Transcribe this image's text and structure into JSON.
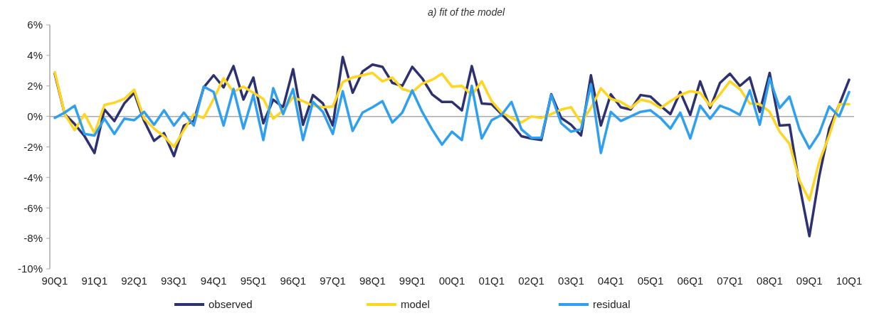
{
  "chart_data": {
    "type": "line",
    "title": "a) fit of the model",
    "categories": [
      "90Q1",
      null,
      null,
      null,
      "91Q1",
      null,
      null,
      null,
      "92Q1",
      null,
      null,
      null,
      "93Q1",
      null,
      null,
      null,
      "94Q1",
      null,
      null,
      null,
      "95Q1",
      null,
      null,
      null,
      "96Q1",
      null,
      null,
      null,
      "97Q1",
      null,
      null,
      null,
      "98Q1",
      null,
      null,
      null,
      "99Q1",
      null,
      null,
      null,
      "00Q1",
      null,
      null,
      null,
      "01Q1",
      null,
      null,
      null,
      "02Q1",
      null,
      null,
      null,
      "03Q1",
      null,
      null,
      null,
      "04Q1",
      null,
      null,
      null,
      "05Q1",
      null,
      null,
      null,
      "06Q1",
      null,
      null,
      null,
      "07Q1",
      null,
      null,
      null,
      "08Q1",
      null,
      null,
      null,
      "09Q1",
      null,
      null,
      null,
      "10Q1"
    ],
    "series": [
      {
        "name": "observed",
        "color": "#2e3170",
        "values": [
          2.8,
          0.15,
          -0.5,
          -1.3,
          -2.4,
          0.45,
          -0.3,
          0.85,
          1.55,
          -0.3,
          -1.6,
          -1.1,
          -2.6,
          -0.6,
          -0.3,
          1.9,
          2.7,
          1.9,
          3.3,
          1.1,
          2.55,
          -0.45,
          1.1,
          0.6,
          3.1,
          -0.55,
          1.4,
          0.85,
          -0.6,
          3.9,
          1.55,
          2.95,
          3.4,
          3.25,
          2.2,
          2.0,
          3.25,
          2.5,
          1.45,
          0.95,
          0.95,
          0.4,
          3.3,
          0.85,
          0.8,
          0.15,
          -0.5,
          -1.3,
          -1.45,
          -1.55,
          1.45,
          -0.1,
          -0.55,
          -1.25,
          2.7,
          -0.6,
          1.45,
          0.6,
          0.45,
          1.4,
          1.3,
          0.7,
          0.15,
          1.6,
          0.1,
          2.3,
          0.55,
          2.2,
          2.8,
          2.0,
          2.55,
          0.3,
          2.85,
          -0.6,
          -0.55,
          -4.5,
          -7.85,
          -3.9,
          -0.8,
          0.75,
          2.4
        ]
      },
      {
        "name": "model",
        "color": "#ffd520",
        "values": [
          2.9,
          0.15,
          -0.9,
          0.15,
          -1.1,
          0.75,
          0.9,
          1.15,
          1.75,
          -0.15,
          -0.8,
          -1.3,
          -2.0,
          -0.9,
          0.15,
          -0.1,
          1.15,
          2.5,
          1.6,
          1.95,
          1.55,
          1.15,
          -0.15,
          0.4,
          1.25,
          1.0,
          0.7,
          0.6,
          0.65,
          2.25,
          2.55,
          2.7,
          2.85,
          2.3,
          2.55,
          1.8,
          1.6,
          2.15,
          2.4,
          2.8,
          1.95,
          2.0,
          1.4,
          2.3,
          1.0,
          0.25,
          -0.1,
          -0.4,
          0,
          -0.1,
          0.15,
          0.45,
          0.6,
          -0.4,
          0.55,
          1.85,
          1.15,
          0.95,
          0.55,
          1.1,
          0.95,
          0.55,
          1.0,
          1.4,
          1.65,
          1.55,
          0.7,
          1.45,
          2.3,
          1.8,
          0.85,
          0.8,
          0.3,
          -1.0,
          -1.8,
          -4.2,
          -5.5,
          -2.95,
          -1.25,
          0.8,
          0.8
        ]
      },
      {
        "name": "residual",
        "color": "#2f9ff0",
        "values": [
          -0.1,
          0.25,
          0.7,
          -1.15,
          -1.25,
          -0.15,
          -1.15,
          -0.15,
          -0.25,
          0.3,
          -0.55,
          0.4,
          -0.6,
          0.25,
          -0.6,
          1.95,
          1.6,
          -0.6,
          1.8,
          -0.8,
          1.4,
          -1.55,
          1.85,
          0.15,
          1.8,
          -1.55,
          0.95,
          0.3,
          -1.15,
          1.65,
          -0.95,
          0.25,
          0.6,
          1.0,
          -0.4,
          0.25,
          1.7,
          0.3,
          -0.85,
          -1.85,
          -1.0,
          -1.55,
          2.0,
          -1.45,
          -0.25,
          0.1,
          0.95,
          -0.85,
          -1.4,
          -1.4,
          1.4,
          -0.45,
          -1.0,
          -0.85,
          2.1,
          -2.4,
          0.3,
          -0.3,
          0,
          0.3,
          0.4,
          -0.1,
          -0.8,
          0.25,
          -1.45,
          0.7,
          -0.15,
          0.7,
          0.45,
          0.1,
          1.7,
          -0.55,
          2.5,
          0.55,
          1.3,
          -0.85,
          -2.1,
          -1.1,
          0.65,
          0,
          1.6
        ]
      }
    ],
    "ylim": [
      -10,
      6
    ],
    "yticks": [
      {
        "value": 6,
        "label": "6%"
      },
      {
        "value": 4,
        "label": "4%"
      },
      {
        "value": 2,
        "label": "2%"
      },
      {
        "value": 0,
        "label": "0%"
      },
      {
        "value": -2,
        "label": "-2%"
      },
      {
        "value": -4,
        "label": "-4%"
      },
      {
        "value": -6,
        "label": "-6%"
      },
      {
        "value": -8,
        "label": "-8%"
      },
      {
        "value": -10,
        "label": "-10%"
      }
    ],
    "legend": "bottom",
    "marker": "none",
    "line_style": "solid"
  }
}
